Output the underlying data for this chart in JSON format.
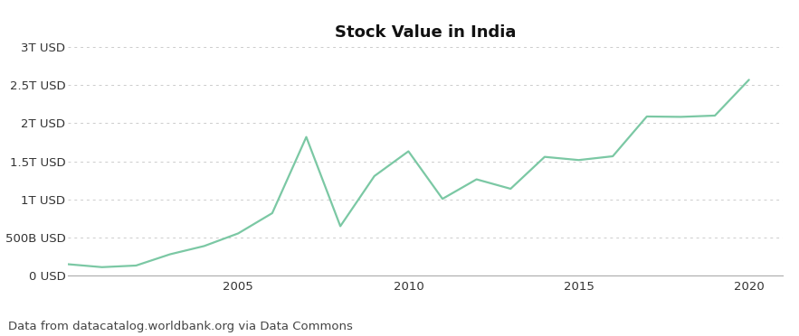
{
  "title": "Stock Value in India",
  "source_text": "Data from datacatalog.worldbank.org via Data Commons",
  "line_color": "#7bc8a4",
  "background_color": "#ffffff",
  "years": [
    2000,
    2001,
    2002,
    2003,
    2004,
    2005,
    2006,
    2007,
    2008,
    2009,
    2010,
    2011,
    2012,
    2013,
    2014,
    2015,
    2016,
    2017,
    2018,
    2019,
    2020
  ],
  "values": [
    148400000000.0,
    110000000000.0,
    131000000000.0,
    279000000000.0,
    387000000000.0,
    553000000000.0,
    819000000000.0,
    1819000000000.0,
    648000000000.0,
    1306000000000.0,
    1631000000000.0,
    1007000000000.0,
    1263000000000.0,
    1139000000000.0,
    1558000000000.0,
    1516000000000.0,
    1566000000000.0,
    2088000000000.0,
    2083000000000.0,
    2100000000000.0,
    2570000000000.0
  ],
  "ytick_labels": [
    "0 USD",
    "500B USD",
    "1T USD",
    "1.5T USD",
    "2T USD",
    "2.5T USD",
    "3T USD"
  ],
  "ytick_values": [
    0,
    500000000000.0,
    1000000000000.0,
    1500000000000.0,
    2000000000000.0,
    2500000000000.0,
    3000000000000.0
  ],
  "xtick_labels": [
    "2005",
    "2010",
    "2015",
    "2020"
  ],
  "xtick_values": [
    2005,
    2010,
    2015,
    2020
  ],
  "xlim": [
    2000,
    2021
  ],
  "ylim": [
    0,
    3000000000000.0
  ],
  "line_width": 1.6,
  "title_fontsize": 13,
  "tick_fontsize": 9.5,
  "source_fontsize": 9.5
}
